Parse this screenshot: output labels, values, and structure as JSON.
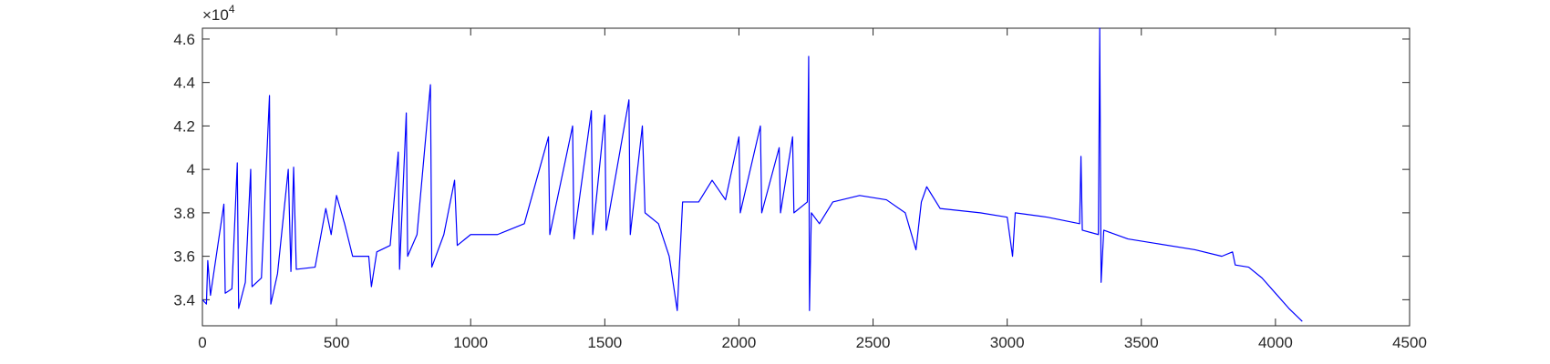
{
  "chart_data": {
    "type": "line",
    "y_multiplier_base": "×10",
    "y_multiplier_power": "4",
    "xlim": [
      0,
      4500
    ],
    "xticks": [
      0,
      500,
      1000,
      1500,
      2000,
      2500,
      3000,
      3500,
      4000,
      4500
    ],
    "ylim": [
      32800,
      46500
    ],
    "yticks": [
      {
        "value": 34000,
        "label": "3.4"
      },
      {
        "value": 36000,
        "label": "3.6"
      },
      {
        "value": 38000,
        "label": "3.8"
      },
      {
        "value": 40000,
        "label": "4"
      },
      {
        "value": 42000,
        "label": "4.2"
      },
      {
        "value": 44000,
        "label": "4.4"
      },
      {
        "value": 46000,
        "label": "4.6"
      }
    ],
    "grid": false,
    "series": [
      {
        "color": "#0000ff",
        "x": [
          0,
          15,
          20,
          30,
          80,
          85,
          110,
          130,
          135,
          160,
          180,
          185,
          220,
          250,
          255,
          280,
          320,
          330,
          340,
          350,
          420,
          460,
          480,
          500,
          530,
          560,
          620,
          630,
          650,
          700,
          730,
          735,
          760,
          765,
          800,
          850,
          855,
          900,
          940,
          950,
          1000,
          1100,
          1200,
          1290,
          1295,
          1380,
          1385,
          1450,
          1455,
          1500,
          1505,
          1590,
          1595,
          1640,
          1650,
          1700,
          1740,
          1770,
          1790,
          1850,
          1900,
          1950,
          2000,
          2005,
          2080,
          2085,
          2150,
          2155,
          2200,
          2205,
          2255,
          2260,
          2263,
          2270,
          2300,
          2350,
          2450,
          2550,
          2620,
          2660,
          2680,
          2700,
          2750,
          2900,
          3000,
          3020,
          3030,
          3150,
          3270,
          3275,
          3280,
          3340,
          3345,
          3350,
          3360,
          3450,
          3550,
          3700,
          3800,
          3840,
          3850,
          3900,
          3950,
          4000,
          4050,
          4100
        ],
        "values": [
          34000,
          33800,
          35800,
          34200,
          38400,
          34300,
          34500,
          40300,
          33600,
          34800,
          40000,
          34600,
          35000,
          43400,
          33800,
          35200,
          40000,
          35300,
          40100,
          35400,
          35500,
          38200,
          37000,
          38800,
          37500,
          36000,
          36000,
          34600,
          36200,
          36500,
          40800,
          35400,
          42600,
          36000,
          37000,
          43900,
          35500,
          37000,
          39500,
          36500,
          37000,
          37000,
          37500,
          41500,
          37000,
          42000,
          36800,
          42700,
          37000,
          42500,
          37200,
          43200,
          37000,
          42000,
          38000,
          37500,
          36000,
          33500,
          38500,
          38500,
          39500,
          38600,
          41500,
          38000,
          42000,
          38000,
          41000,
          38000,
          41500,
          38000,
          38500,
          45200,
          33500,
          38000,
          37500,
          38500,
          38800,
          38600,
          38000,
          36300,
          38500,
          39200,
          38200,
          38000,
          37800,
          36000,
          38000,
          37800,
          37500,
          40600,
          37200,
          37000,
          46500,
          34800,
          37200,
          36800,
          36600,
          36300,
          36000,
          36200,
          35600,
          35500,
          35000,
          34300,
          33600,
          33000
        ]
      }
    ]
  }
}
